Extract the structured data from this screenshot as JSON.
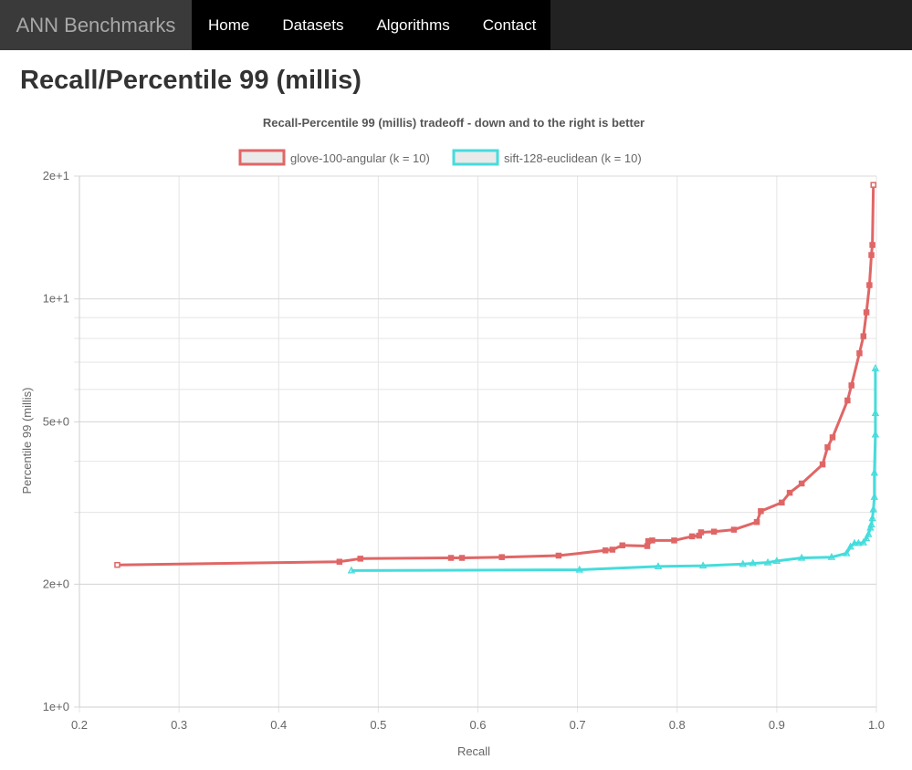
{
  "nav": {
    "brand": "ANN Benchmarks",
    "links": [
      "Home",
      "Datasets",
      "Algorithms",
      "Contact"
    ]
  },
  "page_title": "Recall/Percentile 99 (millis)",
  "colors": {
    "series1": "#e06666",
    "series2": "#45dcdc",
    "grid": "#e4e4e4",
    "axis_text": "#666666",
    "title_text": "#555555"
  },
  "chart_data": {
    "type": "line",
    "title": "Recall-Percentile 99 (millis) tradeoff - down and to the right is better",
    "xlabel": "Recall",
    "ylabel": "Percentile 99 (millis)",
    "xlim": [
      0.2,
      1.0
    ],
    "ylim": [
      1,
      20
    ],
    "y_scale": "log",
    "x_ticks": [
      "0.2",
      "0.3",
      "0.4",
      "0.5",
      "0.6",
      "0.7",
      "0.8",
      "0.9",
      "1.0"
    ],
    "y_ticks": [
      {
        "value": 20,
        "label": "2e+1"
      },
      {
        "value": 10,
        "label": "1e+1"
      },
      {
        "value": 5,
        "label": "5e+0"
      },
      {
        "value": 2,
        "label": "2e+0"
      },
      {
        "value": 1,
        "label": "1e+0"
      }
    ],
    "grid": true,
    "legend_position": "top",
    "series": [
      {
        "name": "glove-100-angular (k = 10)",
        "marker": "square",
        "points": [
          [
            0.238,
            2.23
          ],
          [
            0.461,
            2.27
          ],
          [
            0.482,
            2.31
          ],
          [
            0.573,
            2.32
          ],
          [
            0.584,
            2.32
          ],
          [
            0.624,
            2.33
          ],
          [
            0.681,
            2.35
          ],
          [
            0.728,
            2.42
          ],
          [
            0.735,
            2.43
          ],
          [
            0.745,
            2.49
          ],
          [
            0.77,
            2.48
          ],
          [
            0.771,
            2.55
          ],
          [
            0.775,
            2.56
          ],
          [
            0.797,
            2.56
          ],
          [
            0.815,
            2.62
          ],
          [
            0.822,
            2.63
          ],
          [
            0.824,
            2.68
          ],
          [
            0.837,
            2.69
          ],
          [
            0.857,
            2.72
          ],
          [
            0.88,
            2.84
          ],
          [
            0.884,
            3.02
          ],
          [
            0.905,
            3.17
          ],
          [
            0.913,
            3.35
          ],
          [
            0.925,
            3.53
          ],
          [
            0.946,
            3.93
          ],
          [
            0.951,
            4.33
          ],
          [
            0.956,
            4.58
          ],
          [
            0.971,
            5.64
          ],
          [
            0.975,
            6.14
          ],
          [
            0.983,
            7.36
          ],
          [
            0.987,
            8.1
          ],
          [
            0.99,
            9.27
          ],
          [
            0.993,
            10.81
          ],
          [
            0.995,
            12.81
          ],
          [
            0.996,
            13.56
          ],
          [
            0.997,
            19.03
          ]
        ]
      },
      {
        "name": "sift-128-euclidean (k = 10)",
        "marker": "triangle",
        "points": [
          [
            0.473,
            2.16
          ],
          [
            0.702,
            2.17
          ],
          [
            0.781,
            2.21
          ],
          [
            0.826,
            2.22
          ],
          [
            0.866,
            2.24
          ],
          [
            0.876,
            2.25
          ],
          [
            0.891,
            2.26
          ],
          [
            0.9,
            2.28
          ],
          [
            0.925,
            2.32
          ],
          [
            0.955,
            2.33
          ],
          [
            0.97,
            2.38
          ],
          [
            0.974,
            2.47
          ],
          [
            0.978,
            2.52
          ],
          [
            0.982,
            2.52
          ],
          [
            0.987,
            2.53
          ],
          [
            0.99,
            2.59
          ],
          [
            0.992,
            2.65
          ],
          [
            0.994,
            2.75
          ],
          [
            0.995,
            2.8
          ],
          [
            0.996,
            2.9
          ],
          [
            0.997,
            3.05
          ],
          [
            0.998,
            3.27
          ],
          [
            0.998,
            3.75
          ],
          [
            0.999,
            4.65
          ],
          [
            0.999,
            5.25
          ],
          [
            0.999,
            6.76
          ]
        ]
      }
    ]
  }
}
